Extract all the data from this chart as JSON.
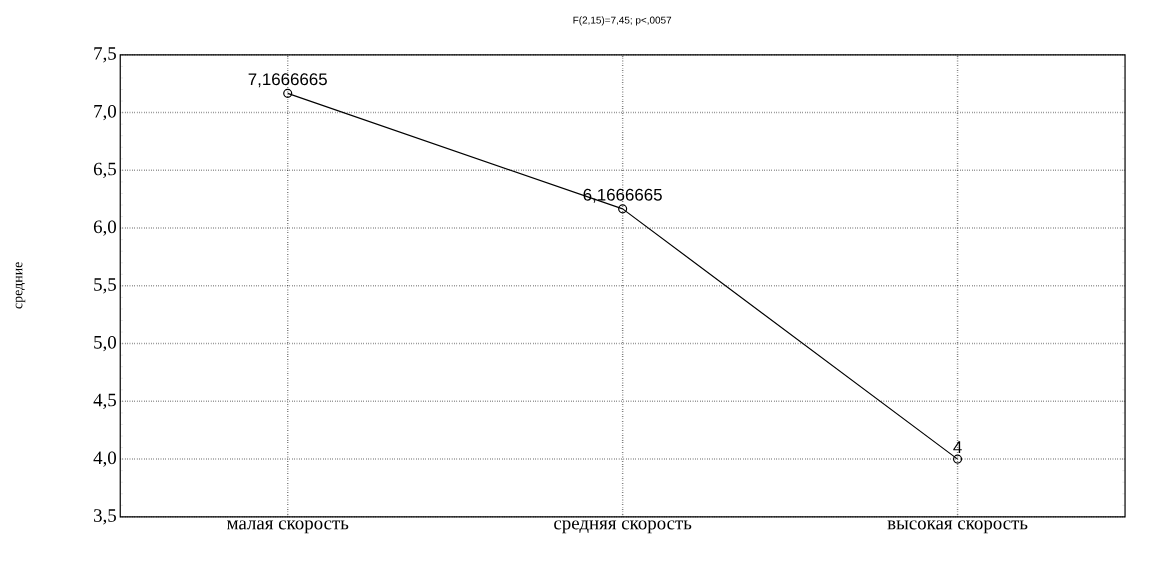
{
  "chart_data": {
    "type": "line",
    "title": "F(2,15)=7,45; p<,0057",
    "ylabel": "средние",
    "categories": [
      "малая скорость",
      "средняя скорость",
      "высокая скорость"
    ],
    "values": [
      7.1666665,
      6.1666665,
      4
    ],
    "value_labels": [
      "7,1666665",
      "6,1666665",
      "4"
    ],
    "color": "#000000",
    "marker": "circle",
    "line_style": "solid",
    "grid": true,
    "ylim": [
      3.5,
      7.5
    ],
    "yticks": [
      {
        "value": 3.5,
        "label": "3,5"
      },
      {
        "value": 4,
        "label": "4,0"
      },
      {
        "value": 4.5,
        "label": "4,5"
      },
      {
        "value": 5,
        "label": "5,0"
      },
      {
        "value": 5.5,
        "label": "5,5"
      },
      {
        "value": 6,
        "label": "6,0"
      },
      {
        "value": 6.5,
        "label": "6,5"
      },
      {
        "value": 7,
        "label": "7,0"
      },
      {
        "value": 7.5,
        "label": "7,5"
      }
    ]
  }
}
